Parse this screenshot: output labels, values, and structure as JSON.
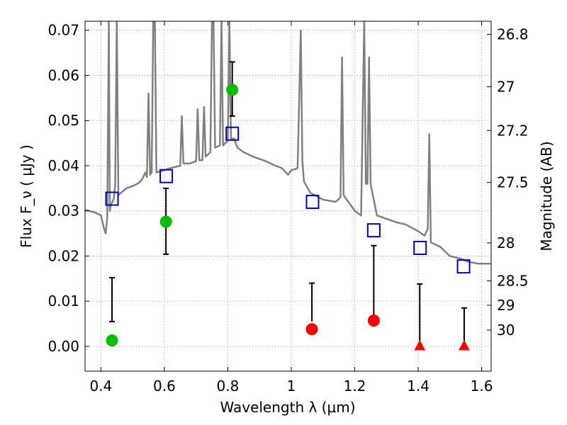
{
  "chart_data": {
    "type": "scatter",
    "xlabel": "Wavelength  λ (μm)",
    "ylabel": "Flux  F_ν  ( μJy )",
    "ylabel_right": "Magnitude (AB)",
    "xlim": [
      0.35,
      1.63
    ],
    "ylim": [
      -0.0055,
      0.072
    ],
    "grid": true,
    "x_ticks": [
      {
        "value": 0.4,
        "label": "0.4"
      },
      {
        "value": 0.6,
        "label": "0.6"
      },
      {
        "value": 0.8,
        "label": "0.8"
      },
      {
        "value": 1.0,
        "label": "1"
      },
      {
        "value": 1.2,
        "label": "1.2"
      },
      {
        "value": 1.4,
        "label": "1.4"
      },
      {
        "value": 1.6,
        "label": "1.6"
      }
    ],
    "y_ticks": [
      {
        "value": 0.0,
        "label": "0.00"
      },
      {
        "value": 0.01,
        "label": "0.01"
      },
      {
        "value": 0.02,
        "label": "0.02"
      },
      {
        "value": 0.03,
        "label": "0.03"
      },
      {
        "value": 0.04,
        "label": "0.04"
      },
      {
        "value": 0.05,
        "label": "0.05"
      },
      {
        "value": 0.06,
        "label": "0.06"
      },
      {
        "value": 0.07,
        "label": "0.07"
      }
    ],
    "right_ticks": [
      {
        "flux": 0.0691,
        "label": "26.8"
      },
      {
        "flux": 0.0575,
        "label": "27"
      },
      {
        "flux": 0.0478,
        "label": "27.2"
      },
      {
        "flux": 0.0363,
        "label": "27.5"
      },
      {
        "flux": 0.0229,
        "label": "28"
      },
      {
        "flux": 0.0145,
        "label": "28.5"
      },
      {
        "flux": 0.0091,
        "label": "29"
      },
      {
        "flux": 0.0036,
        "label": "30"
      }
    ],
    "colors": {
      "model": "#808080",
      "green": "#00bf00",
      "red": "#ff0000",
      "squares": "#0000cc",
      "errorbars": "#000000",
      "grid": "#999999"
    },
    "detections": [
      {
        "x": 0.435,
        "y": 0.0013,
        "yerr_low": 0.0055,
        "yerr_high": 0.0152
      },
      {
        "x": 0.605,
        "y": 0.0276,
        "yerr_low": 0.0204,
        "yerr_high": 0.035
      },
      {
        "x": 0.814,
        "y": 0.0568,
        "yerr_low": 0.051,
        "yerr_high": 0.063
      }
    ],
    "nondetections": [
      {
        "x": 1.065,
        "y": 0.0038,
        "yerr_low": 0.0055,
        "yerr_high": 0.014,
        "marker": "circle"
      },
      {
        "x": 1.26,
        "y": 0.0057,
        "yerr_low": 0.0055,
        "yerr_high": 0.0223,
        "marker": "circle"
      },
      {
        "x": 1.405,
        "y": 0.0,
        "yerr_low": 0.0,
        "yerr_high": 0.0138,
        "marker": "triangle"
      },
      {
        "x": 1.545,
        "y": 0.0,
        "yerr_low": 0.0,
        "yerr_high": 0.0085,
        "marker": "triangle"
      }
    ],
    "model_photometry": [
      {
        "x": 0.435,
        "y": 0.0327
      },
      {
        "x": 0.606,
        "y": 0.0377
      },
      {
        "x": 0.814,
        "y": 0.0471
      },
      {
        "x": 1.067,
        "y": 0.032
      },
      {
        "x": 1.26,
        "y": 0.0257
      },
      {
        "x": 1.406,
        "y": 0.0218
      },
      {
        "x": 1.543,
        "y": 0.0177
      }
    ],
    "model_spectrum": [
      [
        0.35,
        0.0302
      ],
      [
        0.38,
        0.0297
      ],
      [
        0.4,
        0.029
      ],
      [
        0.41,
        0.026
      ],
      [
        0.415,
        0.025
      ],
      [
        0.42,
        0.0285
      ],
      [
        0.425,
        0.072
      ],
      [
        0.428,
        0.03
      ],
      [
        0.432,
        0.0315
      ],
      [
        0.44,
        0.0325
      ],
      [
        0.445,
        0.0355
      ],
      [
        0.45,
        0.072
      ],
      [
        0.455,
        0.0335
      ],
      [
        0.48,
        0.035
      ],
      [
        0.5,
        0.0355
      ],
      [
        0.52,
        0.0362
      ],
      [
        0.53,
        0.037
      ],
      [
        0.54,
        0.0385
      ],
      [
        0.545,
        0.0375
      ],
      [
        0.55,
        0.056
      ],
      [
        0.555,
        0.038
      ],
      [
        0.56,
        0.0385
      ],
      [
        0.565,
        0.072
      ],
      [
        0.57,
        0.072
      ],
      [
        0.575,
        0.0385
      ],
      [
        0.6,
        0.039
      ],
      [
        0.62,
        0.0395
      ],
      [
        0.65,
        0.04
      ],
      [
        0.655,
        0.051
      ],
      [
        0.66,
        0.0405
      ],
      [
        0.68,
        0.0405
      ],
      [
        0.7,
        0.041
      ],
      [
        0.705,
        0.0525
      ],
      [
        0.71,
        0.0412
      ],
      [
        0.72,
        0.0412
      ],
      [
        0.725,
        0.053
      ],
      [
        0.73,
        0.042
      ],
      [
        0.745,
        0.043
      ],
      [
        0.75,
        0.072
      ],
      [
        0.755,
        0.072
      ],
      [
        0.76,
        0.044
      ],
      [
        0.775,
        0.0445
      ],
      [
        0.78,
        0.072
      ],
      [
        0.785,
        0.0445
      ],
      [
        0.8,
        0.0455
      ],
      [
        0.805,
        0.072
      ],
      [
        0.81,
        0.046
      ],
      [
        0.82,
        0.046
      ],
      [
        0.83,
        0.044
      ],
      [
        0.85,
        0.043
      ],
      [
        0.88,
        0.042
      ],
      [
        0.92,
        0.041
      ],
      [
        0.95,
        0.04
      ],
      [
        0.97,
        0.0395
      ],
      [
        0.99,
        0.038
      ],
      [
        1.0,
        0.039
      ],
      [
        1.01,
        0.0392
      ],
      [
        1.02,
        0.0395
      ],
      [
        1.03,
        0.07
      ],
      [
        1.035,
        0.041
      ],
      [
        1.04,
        0.0365
      ],
      [
        1.06,
        0.034
      ],
      [
        1.1,
        0.0325
      ],
      [
        1.14,
        0.032
      ],
      [
        1.155,
        0.033
      ],
      [
        1.16,
        0.064
      ],
      [
        1.165,
        0.0335
      ],
      [
        1.18,
        0.032
      ],
      [
        1.2,
        0.03
      ],
      [
        1.22,
        0.029
      ],
      [
        1.23,
        0.072
      ],
      [
        1.235,
        0.036
      ],
      [
        1.24,
        0.036
      ],
      [
        1.245,
        0.064
      ],
      [
        1.25,
        0.036
      ],
      [
        1.27,
        0.029
      ],
      [
        1.29,
        0.0285
      ],
      [
        1.33,
        0.0275
      ],
      [
        1.36,
        0.027
      ],
      [
        1.4,
        0.0255
      ],
      [
        1.42,
        0.0245
      ],
      [
        1.43,
        0.026
      ],
      [
        1.435,
        0.047
      ],
      [
        1.44,
        0.023
      ],
      [
        1.47,
        0.022
      ],
      [
        1.5,
        0.02
      ],
      [
        1.53,
        0.0195
      ],
      [
        1.56,
        0.0187
      ],
      [
        1.59,
        0.0183
      ],
      [
        1.63,
        0.0183
      ]
    ]
  }
}
